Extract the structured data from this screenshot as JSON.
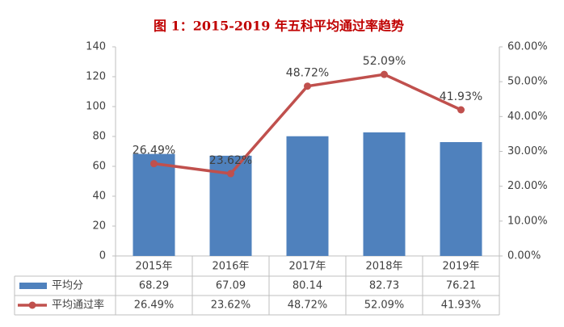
{
  "chart_data": {
    "type": "bar_line_table",
    "title": "图 1：2015-2019 年五科平均通过率趋势",
    "categories": [
      "2015年",
      "2016年",
      "2017年",
      "2018年",
      "2019年"
    ],
    "series": [
      {
        "name": "平均分",
        "type": "bar",
        "color": "#4f81bd",
        "values": [
          68.29,
          67.09,
          80.14,
          82.73,
          76.21
        ]
      },
      {
        "name": "平均通过率",
        "type": "line",
        "axis": "y2",
        "color": "#c0504d",
        "values": [
          26.49,
          23.62,
          48.72,
          52.09,
          41.93
        ],
        "value_labels": [
          "26.49%",
          "23.62%",
          "48.72%",
          "52.09%",
          "41.93%"
        ]
      }
    ],
    "ylim": [
      0,
      140
    ],
    "yticks": [
      0,
      20,
      40,
      60,
      80,
      100,
      120,
      140
    ],
    "y2lim": [
      0,
      60
    ],
    "y2ticks": [
      {
        "value": 0,
        "label": "0.00%"
      },
      {
        "value": 10,
        "label": "10.00%"
      },
      {
        "value": 20,
        "label": "20.00%"
      },
      {
        "value": 30,
        "label": "30.00%"
      },
      {
        "value": 40,
        "label": "40.00%"
      },
      {
        "value": 50,
        "label": "50.00%"
      },
      {
        "value": 60,
        "label": "60.00%"
      }
    ],
    "grid": false
  }
}
